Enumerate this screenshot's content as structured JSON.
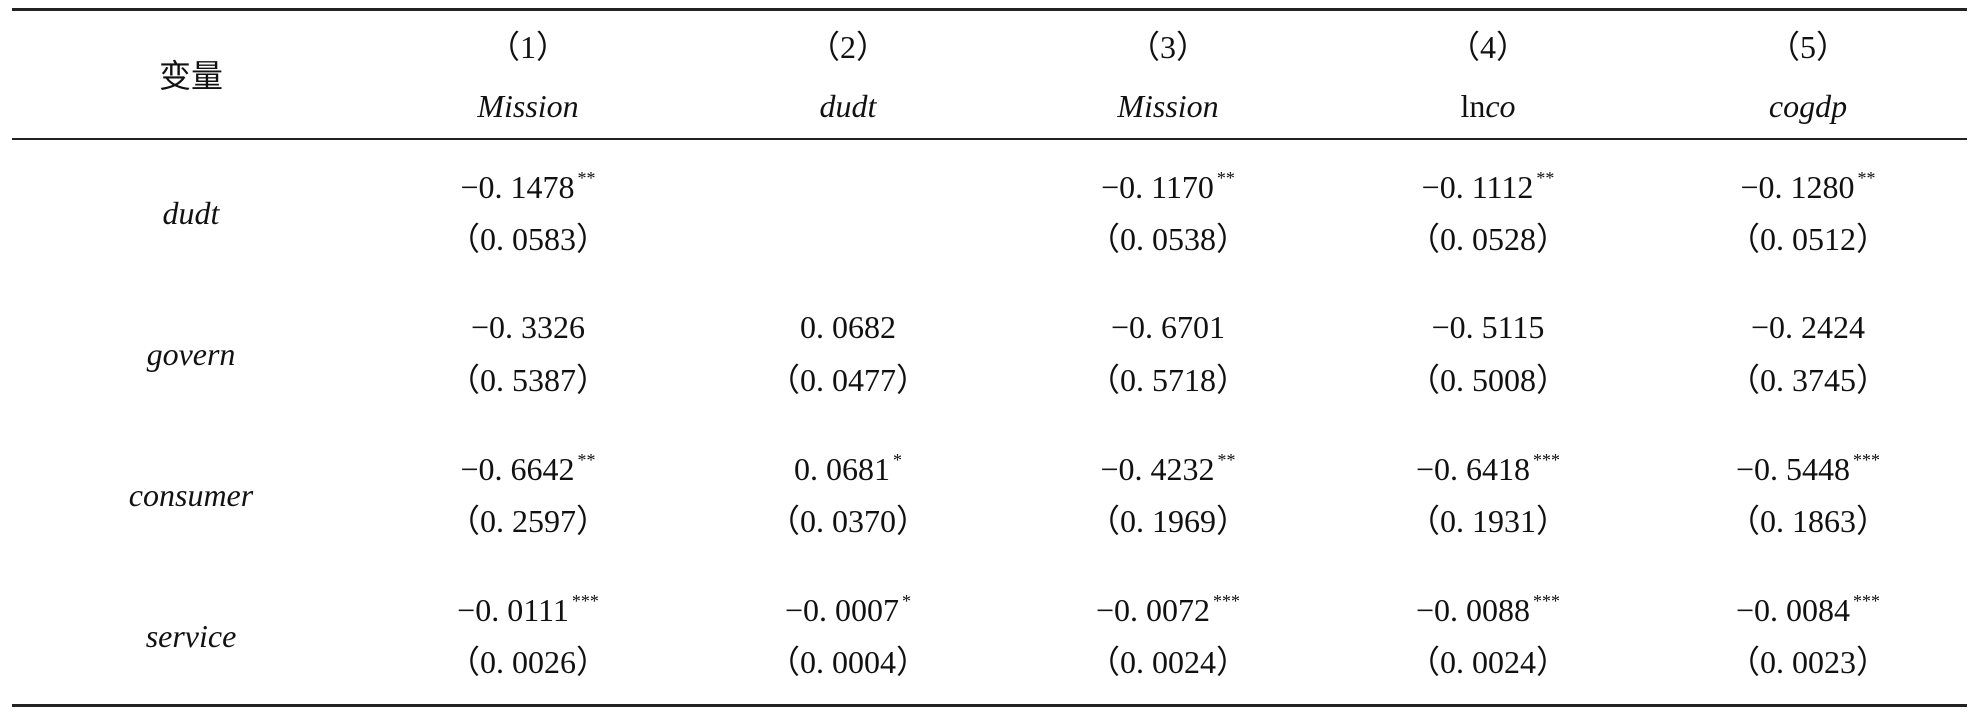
{
  "table": {
    "corner": "变量",
    "columns": [
      {
        "number": "（1）",
        "name": "Mission"
      },
      {
        "number": "（2）",
        "name": "dudt"
      },
      {
        "number": "（3）",
        "name": "Mission"
      },
      {
        "number": "（4）",
        "name": {
          "prefix": "ln",
          "italic": "co"
        }
      },
      {
        "number": "（5）",
        "name": "cogdp"
      }
    ],
    "rows": [
      {
        "label": "dudt",
        "cells": [
          {
            "coef": "−0. 1478",
            "stars": "**",
            "se": "（0. 0583）"
          },
          null,
          {
            "coef": "−0. 1170",
            "stars": "**",
            "se": "（0. 0538）"
          },
          {
            "coef": "−0. 1112",
            "stars": "**",
            "se": "（0. 0528）"
          },
          {
            "coef": "−0. 1280",
            "stars": "**",
            "se": "（0. 0512）"
          }
        ]
      },
      {
        "label": "govern",
        "cells": [
          {
            "coef": "−0. 3326",
            "se": "（0. 5387）"
          },
          {
            "coef": "0. 0682",
            "se": "（0. 0477）"
          },
          {
            "coef": "−0. 6701",
            "se": "（0. 5718）"
          },
          {
            "coef": "−0. 5115",
            "se": "（0. 5008）"
          },
          {
            "coef": "−0. 2424",
            "se": "（0. 3745）"
          }
        ]
      },
      {
        "label": "consumer",
        "cells": [
          {
            "coef": "−0. 6642",
            "stars": "**",
            "se": "（0. 2597）"
          },
          {
            "coef": "0. 0681",
            "stars": "*",
            "se": "（0. 0370）"
          },
          {
            "coef": "−0. 4232",
            "stars": "**",
            "se": "（0. 1969）"
          },
          {
            "coef": "−0. 6418",
            "stars": "***",
            "se": "（0. 1931）"
          },
          {
            "coef": "−0. 5448",
            "stars": "***",
            "se": "（0. 1863）"
          }
        ]
      },
      {
        "label": "service",
        "cells": [
          {
            "coef": "−0. 0111",
            "stars": "***",
            "se": "（0. 0026）"
          },
          {
            "coef": "−0. 0007",
            "stars": "*",
            "se": "（0. 0004）"
          },
          {
            "coef": "−0. 0072",
            "stars": "***",
            "se": "（0. 0024）"
          },
          {
            "coef": "−0. 0088",
            "stars": "***",
            "se": "（0. 0024）"
          },
          {
            "coef": "−0. 0084",
            "stars": "***",
            "se": "（0. 0023）"
          }
        ]
      }
    ]
  }
}
